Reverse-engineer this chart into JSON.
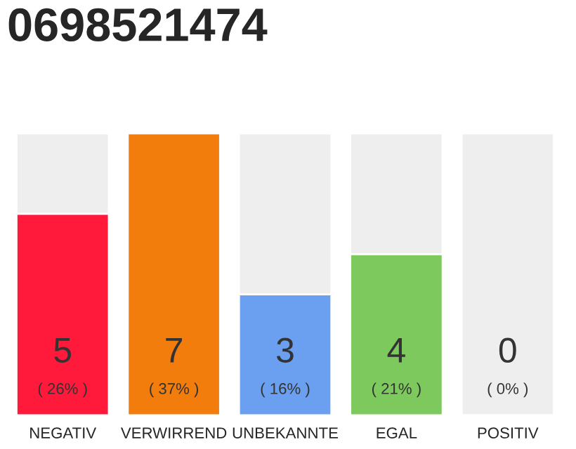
{
  "chart_data": {
    "type": "bar",
    "title": "0698521474",
    "categories": [
      "NEGATIV",
      "VERWIRREND",
      "UNBEKANNTE",
      "EGAL",
      "POSITIV"
    ],
    "values": [
      5,
      7,
      3,
      4,
      0
    ],
    "colors": [
      "#ff1a3c",
      "#f27d0c",
      "#6b9ff0",
      "#7dc95e",
      null
    ],
    "data_labels": true,
    "annotations": [
      "( 26% )",
      "( 37% )",
      "( 16% )",
      "( 21% )",
      "( 0% )"
    ]
  }
}
